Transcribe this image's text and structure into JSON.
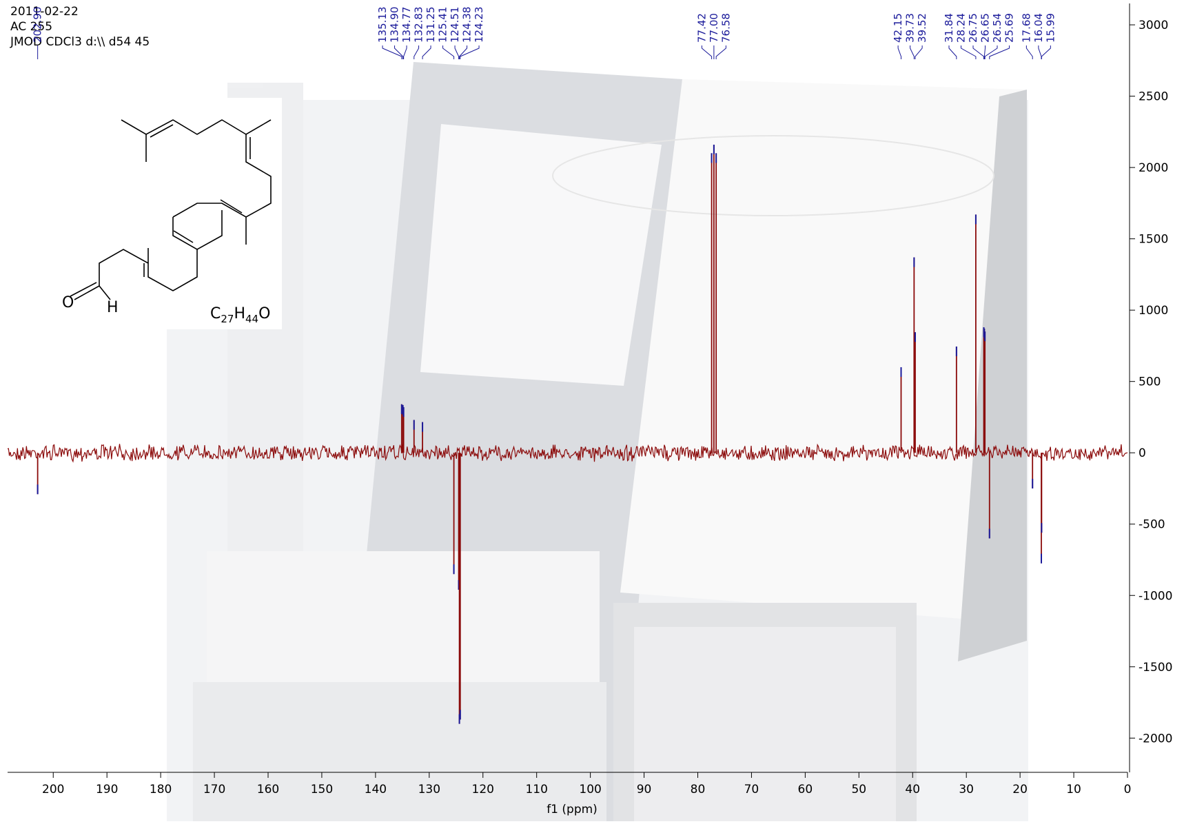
{
  "header": [
    "2011-02-22",
    "AC 255",
    "JMOD CDCl3 d:\\\\ d54 45"
  ],
  "structure": {
    "oxygen": "O",
    "hydrogen": "H",
    "formula": "C27H44O"
  },
  "chart_data": {
    "type": "spectrum",
    "xlabel": "f1 (ppm)",
    "xlim": [
      208.5,
      0
    ],
    "ylim": [
      -2240,
      3150
    ],
    "xticks": [
      200,
      190,
      180,
      170,
      160,
      150,
      140,
      130,
      120,
      110,
      100,
      90,
      80,
      70,
      60,
      50,
      40,
      30,
      20,
      10,
      0
    ],
    "yticks": [
      3000,
      2500,
      2000,
      1500,
      1000,
      500,
      0,
      -500,
      -1000,
      -1500,
      -2000
    ],
    "color": "#8b0a0a",
    "label_color": "#1a1a9a",
    "series": [
      {
        "x": [
          {
            "value": 202.9,
            "label": "202.90"
          },
          {
            "value": 135.13,
            "label": "135.13"
          },
          {
            "value": 134.9,
            "label": "134.90"
          },
          {
            "value": 134.77,
            "label": "134.77"
          },
          {
            "value": 132.83,
            "label": "132.83"
          },
          {
            "value": 131.25,
            "label": "131.25"
          },
          {
            "value": 125.41,
            "label": "125.41"
          },
          {
            "value": 124.51,
            "label": "124.51"
          },
          {
            "value": 124.38,
            "label": "124.38"
          },
          {
            "value": 124.23,
            "label": "124.23"
          },
          {
            "value": 77.42,
            "label": "77.42"
          },
          {
            "value": 77.0,
            "label": "77.00"
          },
          {
            "value": 76.58,
            "label": "76.58"
          },
          {
            "value": 42.15,
            "label": "42.15"
          },
          {
            "value": 39.73,
            "label": "39.73"
          },
          {
            "value": 39.52,
            "label": "39.52"
          },
          {
            "value": 31.84,
            "label": "31.84"
          },
          {
            "value": 28.24,
            "label": "28.24"
          },
          {
            "value": 26.75,
            "label": "26.75"
          },
          {
            "value": 26.65,
            "label": "26.65"
          },
          {
            "value": 26.54,
            "label": "26.54"
          },
          {
            "value": 25.69,
            "label": "25.69"
          },
          {
            "value": 17.68,
            "label": "17.68"
          },
          {
            "value": 16.04,
            "label": "16.04"
          },
          {
            "value": 15.99,
            "label": "15.99"
          }
        ],
        "values": [
          -290,
          340,
          335,
          320,
          230,
          215,
          -850,
          -960,
          -1900,
          -1870,
          2100,
          2160,
          2100,
          600,
          1370,
          845,
          745,
          1670,
          880,
          870,
          850,
          -600,
          -250,
          -775,
          -560
        ]
      }
    ]
  }
}
